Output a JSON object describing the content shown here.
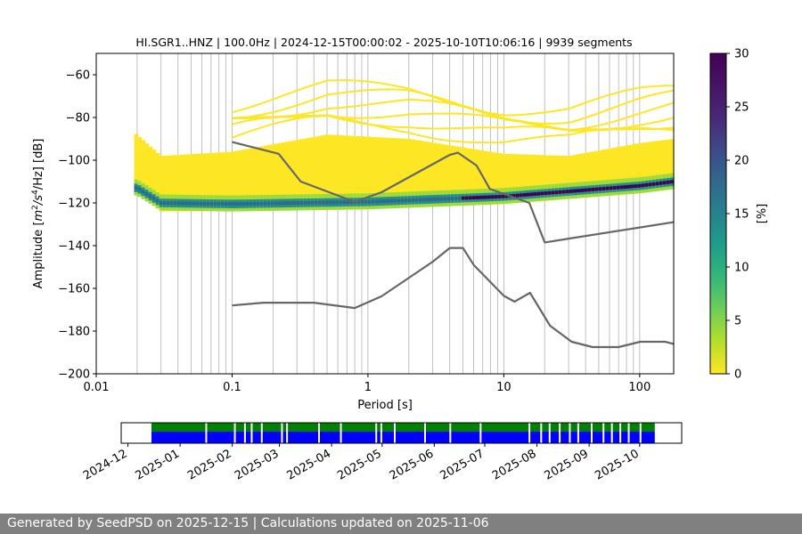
{
  "footer": {
    "text": "Generated by SeedPSD on 2025-12-15 | Calculations updated on 2025-11-06"
  },
  "colors": {
    "footer_bg": "#808080",
    "model_curve": "#666666",
    "availability_primary": "#0000ff",
    "availability_secondary": "#008000",
    "grid": "#b0b0b0"
  },
  "chart_data": [
    {
      "type": "heatmap",
      "title": "HI.SGR1..HNZ | 100.0Hz | 2024-12-15T00:00:02 - 2025-10-10T10:06:16 | 9939 segments",
      "xlabel": "Period [s]",
      "ylabel_parts": [
        "Amplitude [",
        "m",
        "2",
        "/s",
        "4",
        "/Hz] [dB]"
      ],
      "x_scale": "log",
      "xlim": [
        0.01,
        178
      ],
      "ylim": [
        -200,
        -50
      ],
      "x_ticks": [
        {
          "value": 0.01,
          "label": "0.01"
        },
        {
          "value": 0.1,
          "label": "0.1"
        },
        {
          "value": 1,
          "label": "1"
        },
        {
          "value": 10,
          "label": "10"
        },
        {
          "value": 100,
          "label": "100"
        }
      ],
      "y_ticks": [
        {
          "value": -60,
          "label": "−60"
        },
        {
          "value": -80,
          "label": "−80"
        },
        {
          "value": -100,
          "label": "−100"
        },
        {
          "value": -120,
          "label": "−120"
        },
        {
          "value": -140,
          "label": "−140"
        },
        {
          "value": -160,
          "label": "−160"
        },
        {
          "value": -180,
          "label": "−180"
        },
        {
          "value": -200,
          "label": "−200"
        }
      ],
      "grid_periods": [
        0.02,
        0.03,
        0.04,
        0.05,
        0.06,
        0.07,
        0.08,
        0.09,
        0.1,
        0.2,
        0.3,
        0.4,
        0.5,
        0.6,
        0.7,
        0.8,
        0.9,
        1,
        2,
        3,
        4,
        5,
        6,
        7,
        8,
        9,
        10,
        20,
        30,
        40,
        50,
        60,
        70,
        80,
        90,
        100
      ],
      "colorbar": {
        "label": "[%]",
        "range": [
          0,
          30
        ],
        "ticks": [
          {
            "value": 0,
            "label": "0"
          },
          {
            "value": 5,
            "label": "5"
          },
          {
            "value": 10,
            "label": "10"
          },
          {
            "value": 15,
            "label": "15"
          },
          {
            "value": 20,
            "label": "20"
          },
          {
            "value": 25,
            "label": "25"
          },
          {
            "value": 30,
            "label": "30"
          }
        ],
        "colormap": "viridis_r"
      },
      "density_band": {
        "period_range": [
          0.019,
          178
        ],
        "ridge_db": [
          {
            "period": 0.02,
            "db": -113
          },
          {
            "period": 0.03,
            "db": -120
          },
          {
            "period": 0.1,
            "db": -120.5
          },
          {
            "period": 1,
            "db": -119.5
          },
          {
            "period": 10,
            "db": -117
          },
          {
            "period": 100,
            "db": -112
          },
          {
            "period": 178,
            "db": -110
          }
        ],
        "upper_db": [
          {
            "period": 0.019,
            "db": -87
          },
          {
            "period": 0.03,
            "db": -98
          },
          {
            "period": 0.1,
            "db": -96
          },
          {
            "period": 0.5,
            "db": -88
          },
          {
            "period": 2,
            "db": -90
          },
          {
            "period": 10,
            "db": -97
          },
          {
            "period": 30,
            "db": -98
          },
          {
            "period": 100,
            "db": -92
          },
          {
            "period": 178,
            "db": -90
          }
        ],
        "lower_db": [
          {
            "period": 0.019,
            "db": -114
          },
          {
            "period": 0.03,
            "db": -124
          },
          {
            "period": 1,
            "db": -123
          },
          {
            "period": 10,
            "db": -120
          },
          {
            "period": 100,
            "db": -115
          },
          {
            "period": 178,
            "db": -113
          }
        ]
      },
      "series": [
        {
          "points": [
            [
              0.1,
              -91.5
            ],
            [
              0.22,
              -97
            ],
            [
              0.32,
              -110
            ],
            [
              0.8,
              -119.5
            ],
            [
              1.26,
              -115
            ],
            [
              4,
              -97.5
            ],
            [
              4.6,
              -96.5
            ],
            [
              6.3,
              -102.5
            ],
            [
              7.9,
              -113.5
            ],
            [
              15.4,
              -120
            ],
            [
              20,
              -138.5
            ],
            [
              178,
              -129
            ]
          ]
        },
        {
          "points": [
            [
              0.1,
              -168
            ],
            [
              0.17,
              -166.7
            ],
            [
              0.4,
              -166.7
            ],
            [
              0.8,
              -169.2
            ],
            [
              1.26,
              -163.7
            ],
            [
              3,
              -147.5
            ],
            [
              4,
              -141.1
            ],
            [
              5,
              -141.1
            ],
            [
              6,
              -149
            ],
            [
              10,
              -163.5
            ],
            [
              12,
              -166.2
            ],
            [
              15.6,
              -162.1
            ],
            [
              21.9,
              -177.5
            ],
            [
              31.6,
              -185
            ],
            [
              45,
              -187.5
            ],
            [
              70,
              -187.5
            ],
            [
              101,
              -185
            ],
            [
              154,
              -185
            ],
            [
              178,
              -186
            ]
          ]
        }
      ]
    },
    {
      "type": "timeline",
      "x_ticks": [
        {
          "value": "2024-12",
          "label": "2024-12"
        },
        {
          "value": "2025-01",
          "label": "2025-01"
        },
        {
          "value": "2025-02",
          "label": "2025-02"
        },
        {
          "value": "2025-03",
          "label": "2025-03"
        },
        {
          "value": "2025-04",
          "label": "2025-04"
        },
        {
          "value": "2025-05",
          "label": "2025-05"
        },
        {
          "value": "2025-06",
          "label": "2025-06"
        },
        {
          "value": "2025-07",
          "label": "2025-07"
        },
        {
          "value": "2025-08",
          "label": "2025-08"
        },
        {
          "value": "2025-09",
          "label": "2025-09"
        },
        {
          "value": "2025-10",
          "label": "2025-10"
        }
      ],
      "data_start": "2024-12-15",
      "data_end": "2025-10-10",
      "gaps": [
        "2025-01-16",
        "2025-02-02",
        "2025-02-08",
        "2025-02-12",
        "2025-02-18",
        "2025-03-02",
        "2025-03-05",
        "2025-03-24",
        "2025-04-06",
        "2025-04-27",
        "2025-04-30",
        "2025-05-08",
        "2025-05-26",
        "2025-06-10",
        "2025-06-28",
        "2025-07-27",
        "2025-08-03",
        "2025-08-08",
        "2025-08-14",
        "2025-08-20",
        "2025-08-25",
        "2025-09-02",
        "2025-09-09",
        "2025-09-14",
        "2025-09-19",
        "2025-09-24",
        "2025-10-01"
      ]
    }
  ]
}
